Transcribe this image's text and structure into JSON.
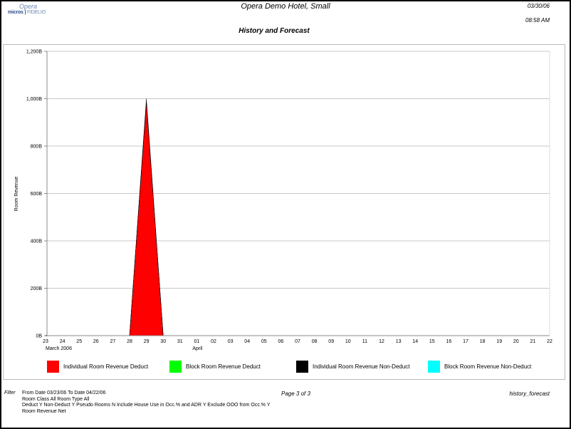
{
  "header": {
    "logo_top": "Opera",
    "logo_bottom_bold": "micros",
    "logo_bottom": "FIDELIO",
    "hotel": "Opera Demo Hotel, Small",
    "report_title": "History and Forecast",
    "date": "03/30/06",
    "time": "08:58 AM"
  },
  "chart_data": {
    "type": "area",
    "stacked": true,
    "ylabel": "Room Revenue",
    "ylim": [
      0,
      1200
    ],
    "yticks": [
      "0B",
      "200B",
      "400B",
      "600B",
      "800B",
      "1,000B",
      "1,200B"
    ],
    "ytick_values": [
      0,
      200,
      400,
      600,
      800,
      1000,
      1200
    ],
    "grid": true,
    "categories": [
      "23",
      "24",
      "25",
      "26",
      "27",
      "28",
      "29",
      "30",
      "31",
      "01",
      "02",
      "03",
      "04",
      "05",
      "06",
      "07",
      "08",
      "09",
      "10",
      "11",
      "12",
      "13",
      "14",
      "15",
      "16",
      "17",
      "18",
      "19",
      "20",
      "21",
      "22"
    ],
    "month_labels": [
      {
        "label": "March 2006",
        "at": "23"
      },
      {
        "label": "April",
        "at": "01"
      }
    ],
    "legend_placement": "bottom",
    "series": [
      {
        "name": "Individual Room Revenue Deduct",
        "color": "#ff0000",
        "values": [
          0,
          0,
          0,
          0,
          0,
          0,
          985,
          0,
          0,
          0,
          0,
          0,
          0,
          0,
          0,
          0,
          0,
          0,
          0,
          0,
          0,
          0,
          0,
          0,
          0,
          0,
          0,
          0,
          0,
          0,
          0
        ]
      },
      {
        "name": "Block Room Revenue Deduct",
        "color": "#00ff00",
        "values": [
          0,
          0,
          0,
          0,
          0,
          0,
          0,
          0,
          0,
          0,
          0,
          0,
          0,
          0,
          0,
          0,
          0,
          0,
          0,
          0,
          0,
          0,
          0,
          0,
          0,
          0,
          0,
          0,
          0,
          0,
          0
        ]
      },
      {
        "name": "Individual Room Revenue Non-Deduct",
        "color": "#000000",
        "values": [
          0,
          0,
          0,
          0,
          0,
          0,
          15,
          0,
          0,
          0,
          0,
          0,
          0,
          0,
          0,
          0,
          0,
          0,
          0,
          0,
          0,
          0,
          0,
          0,
          0,
          0,
          0,
          0,
          0,
          0,
          0
        ]
      },
      {
        "name": "Block Room Revenue Non-Deduct",
        "color": "#00ffff",
        "values": [
          0,
          0,
          0,
          0,
          0,
          0,
          0,
          0,
          0,
          0,
          0,
          0,
          0,
          0,
          0,
          0,
          0,
          0,
          0,
          0,
          0,
          0,
          0,
          0,
          0,
          0,
          0,
          0,
          0,
          0,
          0
        ]
      }
    ]
  },
  "footer": {
    "filter_label": "Filter",
    "filter_lines": [
      "From Date 03/23/06   To Date 04/22/06",
      "Room Class All   Room Type All",
      "Deduct Y   Non-Deduct Y   Pseudo Rooms N   Include House Use in Occ.% and ADR Y   Exclude OOO from Occ.% Y",
      "Room Revenue      Net"
    ],
    "page": "Page 3 of 3",
    "report_name": "history_forecast"
  }
}
